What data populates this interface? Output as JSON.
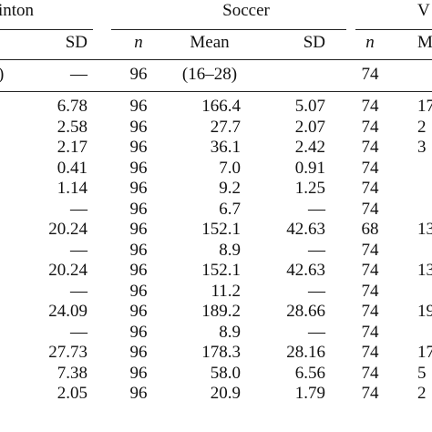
{
  "header": {
    "groups": [
      "inton",
      "Soccer",
      "V"
    ],
    "subheaders": [
      "SD",
      "n",
      "Mean",
      "SD",
      "n",
      "M"
    ],
    "range_row": [
      ")",
      "—",
      "96",
      "(16–28)",
      "74"
    ]
  },
  "table": {
    "rows": [
      [
        "6.78",
        "96",
        "166.4",
        "5.07",
        "74",
        "17"
      ],
      [
        "2.58",
        "96",
        "27.7",
        "2.07",
        "74",
        "2"
      ],
      [
        "2.17",
        "96",
        "36.1",
        "2.42",
        "74",
        "3"
      ],
      [
        "0.41",
        "96",
        "7.0",
        "0.91",
        "74"
      ],
      [
        "1.14",
        "96",
        "9.2",
        "1.25",
        "74"
      ],
      [
        "—",
        "96",
        "6.7",
        "—",
        "74"
      ],
      [
        "20.24",
        "96",
        "152.1",
        "42.63",
        "68",
        "13"
      ],
      [
        "—",
        "96",
        "8.9",
        "—",
        "74"
      ],
      [
        "20.24",
        "96",
        "152.1",
        "42.63",
        "74",
        "13"
      ],
      [
        "—",
        "96",
        "11.2",
        "—",
        "74"
      ],
      [
        "24.09",
        "96",
        "189.2",
        "28.66",
        "74",
        "19"
      ],
      [
        "—",
        "96",
        "8.9",
        "—",
        "74"
      ],
      [
        "27.73",
        "96",
        "178.3",
        "28.16",
        "74",
        "17"
      ],
      [
        "7.38",
        "96",
        "58.0",
        "6.56",
        "74",
        "5"
      ],
      [
        "2.05",
        "96",
        "20.9",
        "1.79",
        "74",
        "2"
      ]
    ]
  }
}
